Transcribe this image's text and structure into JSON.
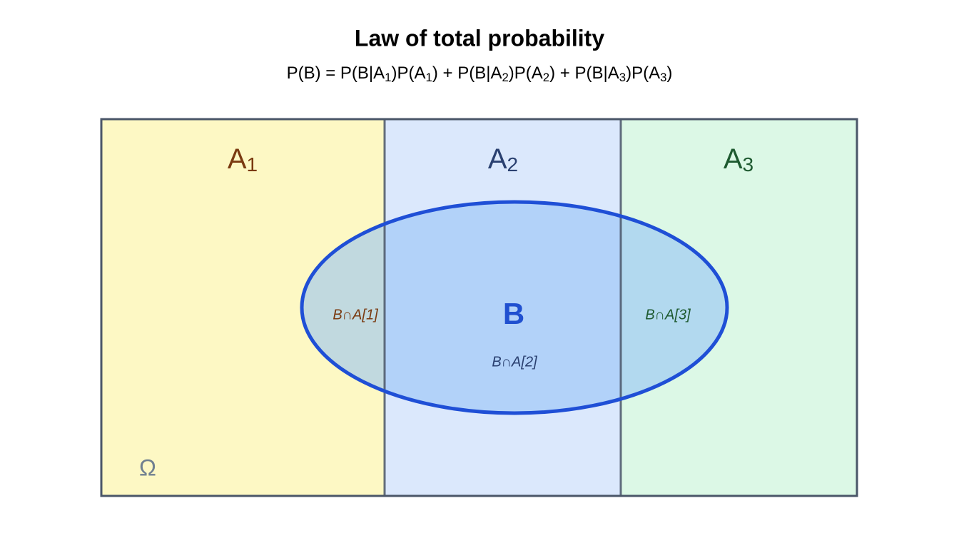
{
  "header": {
    "title": "Law of total probability",
    "formula": [
      "P(B) = P(B|A",
      "1",
      ")P(A",
      "1",
      ") + P(B|A",
      "2",
      ")P(A",
      "2",
      ") + P(B|A",
      "3",
      ")P(A",
      "3",
      ")"
    ]
  },
  "partitions": [
    {
      "base": "A",
      "sub": "1",
      "intersection": "B∩A[1]"
    },
    {
      "base": "A",
      "sub": "2",
      "intersection": "B∩A[2]"
    },
    {
      "base": "A",
      "sub": "3",
      "intersection": "B∩A[3]"
    }
  ],
  "event": "B",
  "sample_space": "Ω"
}
